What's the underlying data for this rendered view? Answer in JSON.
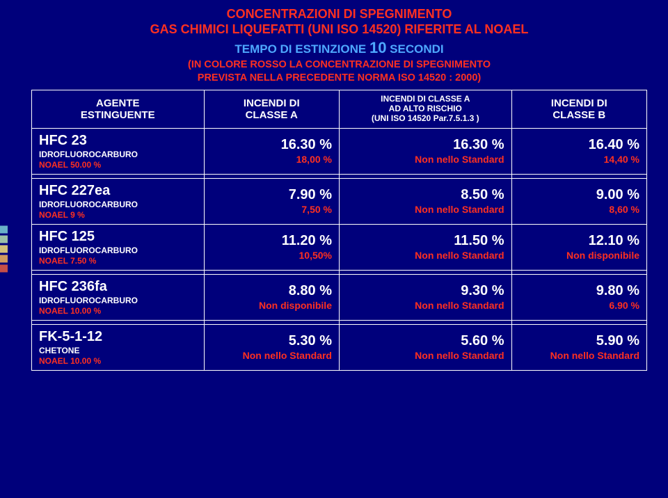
{
  "deco_colors": [
    "#7bcfd6",
    "#b6e0b0",
    "#f7e27a",
    "#f5b55a",
    "#e85c3f"
  ],
  "title": {
    "line1": "CONCENTRAZIONI DI SPEGNIMENTO",
    "line2": "GAS CHIMICI LIQUEFATTI (UNI ISO 14520) RIFERITE AL NOAEL",
    "line3a": "TEMPO DI ESTINZIONE ",
    "line3b": "10",
    "line3c": " SECONDI",
    "line4": "(IN COLORE ROSSO LA CONCENTRAZIONE DI SPEGNIMENTO",
    "line5": "PREVISTA NELLA PRECEDENTE NORMA ISO 14520 : 2000)"
  },
  "headers": {
    "c0a": "AGENTE",
    "c0b": "ESTINGUENTE",
    "c1a": "INCENDI DI",
    "c1b": "CLASSE A",
    "c2a": "INCENDI DI CLASSE A",
    "c2b": "AD ALTO RISCHIO",
    "c2c": "(UNI ISO 14520 Par.7.5.1.3 )",
    "c3a": "INCENDI DI",
    "c3b": "CLASSE B"
  },
  "rows": [
    {
      "name": "HFC 23",
      "type": "IDROFLUOROCARBURO",
      "noael": "NOAEL 50.00 %",
      "a_main": "16.30 %",
      "a_sub": "18,00 %",
      "ah_main": "16.30 %",
      "ah_sub": "Non nello Standard",
      "b_main": "16.40 %",
      "b_sub": "14,40 %"
    },
    {
      "name": "HFC 227ea",
      "type": "IDROFLUOROCARBURO",
      "noael": "NOAEL 9 %",
      "a_main": "7.90 %",
      "a_sub": "7,50 %",
      "ah_main": "8.50 %",
      "ah_sub": "Non nello Standard",
      "b_main": "9.00 %",
      "b_sub": "8,60 %"
    },
    {
      "name": "HFC 125",
      "type": "IDROFLUOROCARBURO",
      "noael": "NOAEL 7.50 %",
      "a_main": "11.20 %",
      "a_sub": "10,50%",
      "ah_main": "11.50 %",
      "ah_sub": "Non nello Standard",
      "b_main": "12.10 %",
      "b_sub": "Non disponibile"
    },
    {
      "name": "HFC 236fa",
      "type": "IDROFLUOROCARBURO",
      "noael": "NOAEL 10.00 %",
      "a_main": "8.80 %",
      "a_sub": "Non disponibile",
      "ah_main": "9.30 %",
      "ah_sub": "Non nello Standard",
      "b_main": "9.80 %",
      "b_sub": "6.90 %"
    },
    {
      "name": "FK-5-1-12",
      "type": "CHETONE",
      "noael": "NOAEL 10.00 %",
      "a_main": "5.30 %",
      "a_sub": "Non nello Standard",
      "ah_main": "5.60 %",
      "ah_sub": "Non nello Standard",
      "b_main": "5.90 %",
      "b_sub": "Non nello Standard"
    }
  ],
  "style": {
    "background": "#00007b",
    "accent_red": "#ff3020",
    "accent_blue": "#4ea8ff",
    "text_white": "#ffffff",
    "main_fontsize": 20,
    "sub_fontsize": 14,
    "header_fontsize": 15,
    "title_fontsize": 18
  }
}
